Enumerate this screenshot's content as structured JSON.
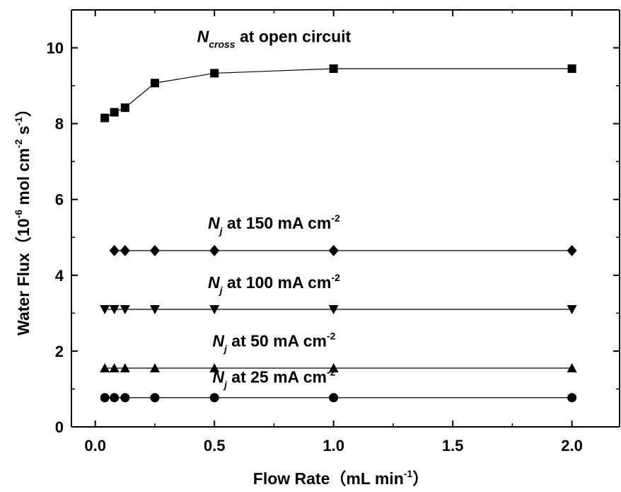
{
  "chart_data": {
    "type": "line",
    "xlabel": {
      "main": "Flow Rate（mL min",
      "sup": "-1",
      "end": "）"
    },
    "ylabel": {
      "main": "Water Flux（10",
      "sup1": "-6",
      "mid": " mol cm",
      "sup2": "-2",
      "mid2": " s",
      "sup3": "-1",
      "end": "）"
    },
    "xlim": [
      -0.1,
      2.2
    ],
    "ylim": [
      0,
      11
    ],
    "xticks": [
      0.0,
      0.5,
      1.0,
      1.5,
      2.0
    ],
    "xtick_labels": [
      "0.0",
      "0.5",
      "1.0",
      "1.5",
      "2.0"
    ],
    "yticks": [
      0,
      2,
      4,
      6,
      8,
      10
    ],
    "ytick_labels": [
      "0",
      "2",
      "4",
      "6",
      "8",
      "10"
    ],
    "grid": false,
    "legend": "none",
    "x": [
      0.04,
      0.08,
      0.125,
      0.25,
      0.5,
      1.0,
      2.0
    ],
    "series": [
      {
        "marker": "square",
        "values": [
          8.15,
          8.3,
          8.42,
          9.07,
          9.33,
          9.45,
          9.45
        ]
      },
      {
        "marker": "diamond",
        "values": [
          null,
          4.65,
          4.65,
          4.65,
          4.65,
          4.65,
          4.65
        ]
      },
      {
        "marker": "triangle-down",
        "values": [
          3.1,
          3.1,
          3.1,
          3.1,
          3.1,
          3.1,
          3.1
        ]
      },
      {
        "marker": "triangle-up",
        "values": [
          1.55,
          1.55,
          1.55,
          1.55,
          1.55,
          1.55,
          1.55
        ]
      },
      {
        "marker": "circle",
        "values": [
          0.77,
          0.77,
          0.77,
          0.77,
          0.77,
          0.77,
          0.77
        ]
      }
    ],
    "annotations": [
      {
        "main": "N",
        "sub": "cross",
        "rest": " at open circuit",
        "sup": "",
        "x": 0.75,
        "y": 10.15
      },
      {
        "main": "N",
        "sub": "j",
        "rest": "  at 150 mA cm",
        "sup": "-2",
        "x": 0.75,
        "y": 5.23
      },
      {
        "main": "N",
        "sub": "j",
        "rest": "  at 100 mA cm",
        "sup": "-2",
        "x": 0.75,
        "y": 3.66
      },
      {
        "main": "N",
        "sub": "j",
        "rest": "  at 50 mA cm",
        "sup": "-2",
        "x": 0.75,
        "y": 2.12
      },
      {
        "main": "N",
        "sub": "j",
        "rest": "   at 25 mA cm",
        "sup": "-2",
        "x": 0.75,
        "y": 1.17
      }
    ],
    "colors": {
      "line": "#000000",
      "marker": "#000000",
      "axis": "#000000"
    }
  }
}
